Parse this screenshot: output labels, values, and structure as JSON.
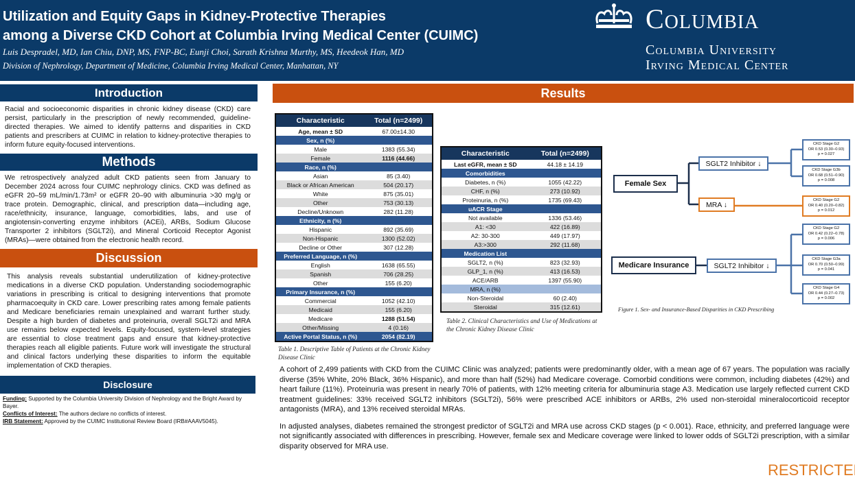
{
  "header": {
    "title_line1": "Utilization and Equity Gaps in Kidney-Protective Therapies",
    "title_line2": "among a Diverse CKD Cohort at Columbia Irving Medical Center (CUIMC)",
    "authors": "Luis Despradel, MD, Ian Chiu, DNP, MS, FNP-BC, Eunji Choi, Sarath Krishna Murthy, MS, Heedeok Han, MD",
    "affiliation": "Division of Nephrology, Department of Medicine, Columbia Irving Medical Center, Manhattan, NY",
    "logo": {
      "main": "Columbia",
      "sub1": "Columbia University",
      "sub2": "Irving Medical Center"
    }
  },
  "introduction": {
    "heading": "Introduction",
    "text": "Racial and socioeconomic disparities in chronic kidney disease (CKD) care persist, particularly in the prescription of newly recommended, guideline-directed therapies. We aimed to identify patterns and disparities in CKD patients and prescribers at CUIMC in relation to kidney-protective therapies to inform future equity-focused interventions."
  },
  "methods": {
    "heading": "Methods",
    "text": "We retrospectively analyzed adult CKD patients seen from January to December 2024 across four CUIMC nephrology clinics. CKD was defined as eGFR 20–59 mL/min/1.73m² or eGFR 20–90 with albuminuria >30 mg/g or trace protein. Demographic, clinical, and prescription data—including age, race/ethnicity, insurance, language, comorbidities, labs, and use of angiotensin-converting enzyme inhibitors (ACEi), ARBs, Sodium Glucose Transporter 2 inhibitors (SGLT2i), and Mineral Corticoid Receptor Agonist (MRAs)—were obtained from the electronic health record."
  },
  "discussion": {
    "heading": "Discussion",
    "text": "This analysis reveals substantial underutilization of kidney-protective medications in a diverse CKD population. Understanding sociodemographic variations in prescribing is critical to designing interventions that promote pharmacoequity in CKD care. Lower prescribing rates among female patients and Medicare beneficiaries remain unexplained and warrant further study. Despite a high burden of diabetes and proteinuria, overall SGLT2i and MRA use remains below expected levels. Equity-focused, system-level strategies are essential to close treatment gaps and ensure that kidney-protective therapies reach all eligible patients. Future work will investigate the structural and clinical factors underlying these disparities to inform the equitable implementation of CKD therapies."
  },
  "disclosure": {
    "heading": "Disclosure",
    "funding_label": "Funding:",
    "funding": " Supported by the Columbia University Division of Nephrology and the Bright Award by Bayer.",
    "coi_label": "Conflicts of Interest:",
    "coi": " The authors declare no conflicts of interest.",
    "irb_label": "IRB Statement:",
    "irb": " Approved by the CUIMC Institutional Review Board (IRB#AAAV5045)."
  },
  "results": {
    "heading": "Results",
    "paragraph1": "A cohort of 2,499 patients with CKD from the CUIMC Clinic was analyzed; patients were predominantly older, with a mean age of 67 years. The population was racially diverse (35% White, 20% Black, 36% Hispanic), and more than half (52%) had Medicare coverage. Comorbid conditions were common, including diabetes (42%) and heart failure (11%). Proteinuria was present in nearly 70% of patients, with 12% meeting criteria for albuminuria stage A3. Medication use largely reflected current CKD treatment guidelines: 33% received SGLT2 inhibitors (SGLT2i), 56% were prescribed ACE inhibitors or ARBs, 2% used non-steroidal mineralocorticoid receptor antagonists (MRA), and 13% received steroidal MRAs.",
    "paragraph2": "In adjusted analyses, diabetes remained the strongest predictor of SGLT2i and MRA use across CKD stages (p < 0.001). Race, ethnicity, and preferred language were not significantly associated with differences in prescribing. However, female sex and Medicare coverage were linked to lower odds of SGLT2i prescription, with a similar disparity observed for MRA use."
  },
  "table1": {
    "headers": [
      "Characteristic",
      "Total (n=2499)"
    ],
    "caption": "Table 1. Descriptive Table of Patients at the Chronic Kidney Disease Clinic",
    "rows": [
      {
        "type": "bold",
        "c": [
          "Age, mean ± SD",
          "67.00±14.30"
        ]
      },
      {
        "type": "sec",
        "c": [
          "Sex, n (%)",
          ""
        ]
      },
      {
        "type": "",
        "c": [
          "Male",
          "1383 (55.34)"
        ]
      },
      {
        "type": "alt",
        "c": [
          "Female",
          "1116 (44.66)"
        ],
        "bold_value": true
      },
      {
        "type": "sec",
        "c": [
          "Race, n (%)",
          ""
        ]
      },
      {
        "type": "",
        "c": [
          "Asian",
          "85 (3.40)"
        ]
      },
      {
        "type": "alt",
        "c": [
          "Black or African American",
          "504 (20.17)"
        ]
      },
      {
        "type": "",
        "c": [
          "White",
          "875 (35.01)"
        ]
      },
      {
        "type": "alt",
        "c": [
          "Other",
          "753 (30.13)"
        ]
      },
      {
        "type": "",
        "c": [
          "Decline/Unknown",
          "282 (11.28)"
        ]
      },
      {
        "type": "sec",
        "c": [
          "Ethnicity, n (%)",
          ""
        ]
      },
      {
        "type": "",
        "c": [
          "Hispanic",
          "892 (35.69)"
        ]
      },
      {
        "type": "alt",
        "c": [
          "Non-Hispanic",
          "1300 (52.02)"
        ]
      },
      {
        "type": "",
        "c": [
          "Decline or Other",
          "307 (12.28)"
        ]
      },
      {
        "type": "sec",
        "c": [
          "Preferred Language, n (%)",
          ""
        ]
      },
      {
        "type": "",
        "c": [
          "English",
          "1638 (65.55)"
        ]
      },
      {
        "type": "alt",
        "c": [
          "Spanish",
          "706 (28.25)"
        ]
      },
      {
        "type": "",
        "c": [
          "Other",
          "155 (6.20)"
        ]
      },
      {
        "type": "sec",
        "c": [
          "Primary Insurance, n (%)",
          ""
        ]
      },
      {
        "type": "",
        "c": [
          "Commercial",
          "1052 (42.10)"
        ]
      },
      {
        "type": "alt",
        "c": [
          "Medicaid",
          "155 (6.20)"
        ]
      },
      {
        "type": "",
        "c": [
          "Medicare",
          "1288 (51.54)"
        ],
        "bold_value": true
      },
      {
        "type": "alt",
        "c": [
          "Other/Missing",
          "4 (0.16)"
        ]
      },
      {
        "type": "foot",
        "c": [
          "Active Portal Status, n (%)",
          "2054 (82.19)"
        ]
      }
    ]
  },
  "table2": {
    "headers": [
      "Characteristic",
      "Total (n=2499)"
    ],
    "caption": "Table 2. Clinical Characteristics and Use of Medications at the Chronic Kidney Disease Clinic",
    "rows": [
      {
        "type": "bold",
        "c": [
          "Last eGFR, mean ± SD",
          "44.18 ± 14.19"
        ]
      },
      {
        "type": "sec",
        "c": [
          "Comorbidities",
          ""
        ]
      },
      {
        "type": "",
        "c": [
          "Diabetes, n (%)",
          "1055 (42.22)"
        ]
      },
      {
        "type": "alt",
        "c": [
          "CHF, n (%)",
          "273 (10.92)"
        ]
      },
      {
        "type": "",
        "c": [
          "Proteinuria, n (%)",
          "1735 (69.43)"
        ]
      },
      {
        "type": "sec",
        "c": [
          "uACR Stage",
          ""
        ]
      },
      {
        "type": "",
        "c": [
          "Not available",
          "1336 (53.46)"
        ]
      },
      {
        "type": "alt",
        "c": [
          "A1: <30",
          "422 (16.89)"
        ]
      },
      {
        "type": "",
        "c": [
          "A2: 30-300",
          "449 (17.97)"
        ]
      },
      {
        "type": "alt",
        "c": [
          "A3:>300",
          "292 (11.68)"
        ]
      },
      {
        "type": "sec",
        "c": [
          "Medication List",
          ""
        ]
      },
      {
        "type": "",
        "c": [
          "SGLT2, n (%)",
          "823 (32.93)"
        ]
      },
      {
        "type": "alt",
        "c": [
          "GLP_1, n (%)",
          "413 (16.53)"
        ]
      },
      {
        "type": "",
        "c": [
          "ACE/ARB",
          "1397 (55.90)"
        ]
      },
      {
        "type": "sub",
        "c": [
          "MRA, n (%)",
          ""
        ]
      },
      {
        "type": "",
        "c": [
          "Non-Steroidal",
          "60 (2.40)"
        ]
      },
      {
        "type": "alt",
        "c": [
          "Steroidal",
          "315 (12.61)"
        ]
      }
    ]
  },
  "figure1": {
    "caption": "Figure 1. Sex- and Insurance-Based Disparities in CKD Prescribing",
    "female_sex": "Female Sex",
    "medicare": "Medicare Insurance",
    "sglt2_female": "SGLT2 Inhibitor ↓",
    "mra_female": "MRA ↓",
    "sglt2_medicare": "SGLT2 Inhibitor ↓",
    "results": [
      {
        "stage": "CKD Stage G2",
        "or": "OR 0.53 (0.30–0.93)",
        "p": "p = 0.027"
      },
      {
        "stage": "CKD Stage G3b",
        "or": "OR 0.68 (0.51–0.90)",
        "p": "p = 0.008"
      },
      {
        "stage": "CKD Stage G2",
        "or": "OR 0.40 (0.20–0.82)",
        "p": "p = 0.012"
      },
      {
        "stage": "CKD Stage G2",
        "or": "OR 0.42 (0.22–0.78)",
        "p": "p = 0.006"
      },
      {
        "stage": "CKD Stage G3a",
        "or": "OR 0.70 (0.50–0.99)",
        "p": "p = 0.041"
      },
      {
        "stage": "CKD Stage G4",
        "or": "OR 0.44 (0.27–0.73)",
        "p": "p = 0.002"
      }
    ],
    "colors": {
      "sglt2": "#4a72a8",
      "mra": "#e07b22",
      "root": "#1b2e4b"
    }
  },
  "watermark": "RESTRICTED",
  "colors": {
    "navy": "#0b3a68",
    "orange": "#c9500f",
    "restricted": "#e07b22"
  }
}
